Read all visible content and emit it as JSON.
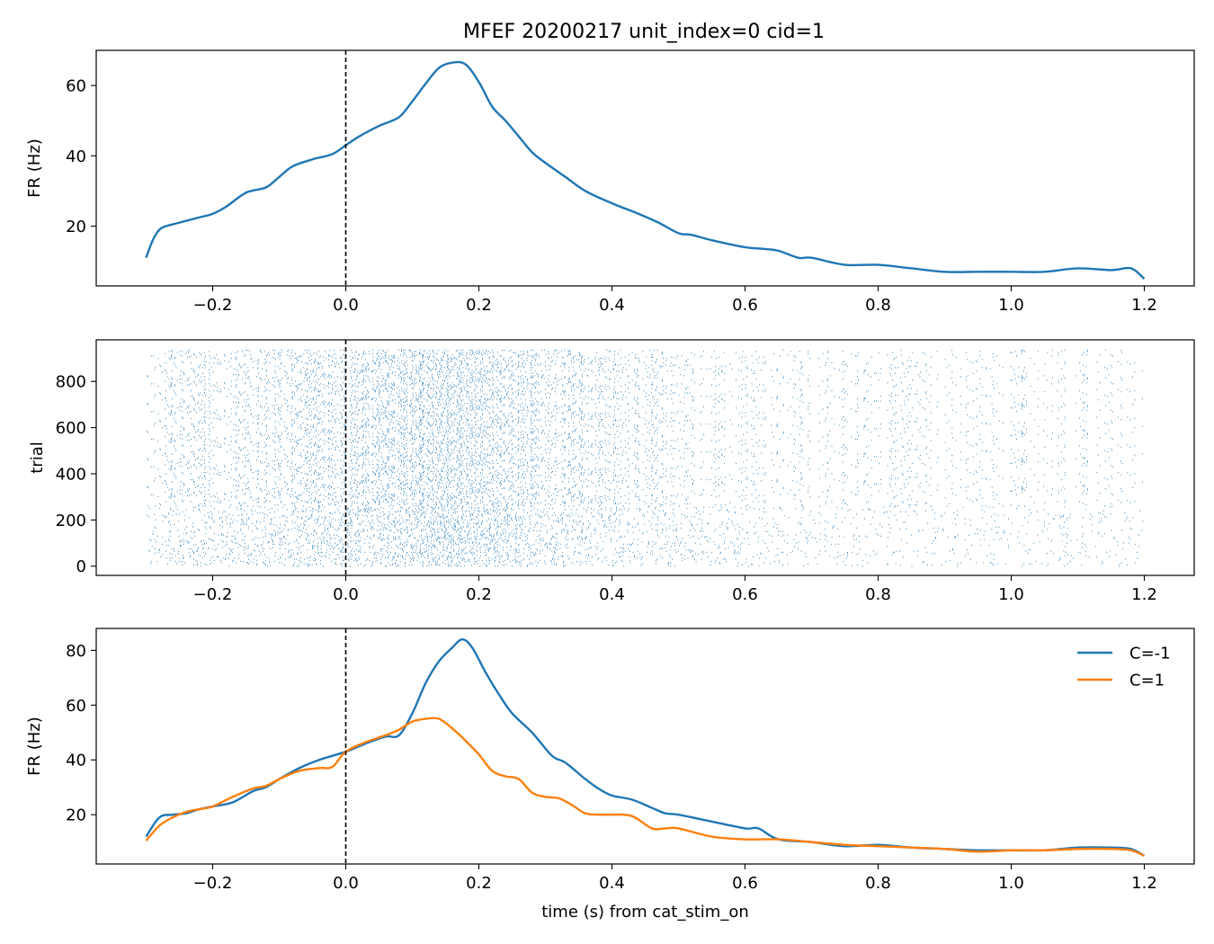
{
  "figure": {
    "title": "MFEF 20200217  unit_index=0  cid=1"
  },
  "colors": {
    "blue": "#1f77b4",
    "orange": "#ff7f0e",
    "axis": "#000000"
  },
  "chart_data": [
    {
      "type": "line",
      "panel": "psth",
      "xlabel": "",
      "ylabel": "FR (Hz)",
      "xlim": [
        -0.375,
        1.275
      ],
      "ylim": [
        3,
        70
      ],
      "xticks": [
        -0.2,
        0.0,
        0.2,
        0.4,
        0.6,
        0.8,
        1.0,
        1.2
      ],
      "xtick_labels": [
        "−0.2",
        "0.0",
        "0.2",
        "0.4",
        "0.6",
        "0.8",
        "1.0",
        "1.2"
      ],
      "yticks": [
        20,
        40,
        60
      ],
      "ytick_labels": [
        "20",
        "40",
        "60"
      ],
      "vline": 0.0,
      "series": [
        {
          "color": "#1f77b4",
          "x": [
            -0.3,
            -0.29,
            -0.28,
            -0.27,
            -0.25,
            -0.22,
            -0.2,
            -0.18,
            -0.15,
            -0.12,
            -0.1,
            -0.08,
            -0.05,
            -0.02,
            0.0,
            0.02,
            0.05,
            0.08,
            0.1,
            0.12,
            0.14,
            0.16,
            0.18,
            0.2,
            0.22,
            0.24,
            0.26,
            0.28,
            0.3,
            0.33,
            0.36,
            0.4,
            0.44,
            0.47,
            0.5,
            0.52,
            0.55,
            0.6,
            0.63,
            0.65,
            0.68,
            0.7,
            0.75,
            0.8,
            0.85,
            0.9,
            0.95,
            1.0,
            1.05,
            1.1,
            1.15,
            1.18,
            1.2
          ],
          "y": [
            11,
            16,
            19,
            20,
            21,
            22.5,
            23.5,
            25.5,
            29.5,
            31,
            34,
            37,
            39,
            40.5,
            43,
            45.5,
            48.5,
            51,
            55.5,
            60.5,
            65,
            66.5,
            66,
            61,
            54,
            50,
            45.5,
            41,
            38,
            34,
            30,
            26.5,
            23.5,
            21,
            18,
            17.5,
            16,
            14,
            13.5,
            13,
            11,
            11,
            9,
            9,
            8,
            7,
            7,
            7,
            7,
            8,
            7.5,
            8,
            5
          ]
        }
      ]
    },
    {
      "type": "scatter",
      "panel": "raster",
      "xlabel": "",
      "ylabel": "trial",
      "xlim": [
        -0.375,
        1.275
      ],
      "ylim": [
        -40,
        980
      ],
      "xticks": [
        -0.2,
        0.0,
        0.2,
        0.4,
        0.6,
        0.8,
        1.0,
        1.2
      ],
      "xtick_labels": [
        "−0.2",
        "0.0",
        "0.2",
        "0.4",
        "0.6",
        "0.8",
        "1.0",
        "1.2"
      ],
      "yticks": [
        0,
        200,
        400,
        600,
        800
      ],
      "ytick_labels": [
        "0",
        "200",
        "400",
        "600",
        "800"
      ],
      "vline": 0.0,
      "trial_count": 940,
      "time_range": [
        -0.3,
        1.2
      ],
      "color": "#1f77b4",
      "rate_profile_from_series": "psth"
    },
    {
      "type": "line",
      "panel": "psth_by_condition",
      "xlabel": "time (s) from cat_stim_on",
      "ylabel": "FR (Hz)",
      "xlim": [
        -0.375,
        1.275
      ],
      "ylim": [
        2,
        88
      ],
      "xticks": [
        -0.2,
        0.0,
        0.2,
        0.4,
        0.6,
        0.8,
        1.0,
        1.2
      ],
      "xtick_labels": [
        "−0.2",
        "0.0",
        "0.2",
        "0.4",
        "0.6",
        "0.8",
        "1.0",
        "1.2"
      ],
      "yticks": [
        20,
        40,
        60,
        80
      ],
      "ytick_labels": [
        "20",
        "40",
        "60",
        "80"
      ],
      "vline": 0.0,
      "legend": "top-right",
      "series": [
        {
          "name": "C=-1",
          "color": "#1f77b4",
          "x": [
            -0.3,
            -0.28,
            -0.26,
            -0.24,
            -0.22,
            -0.2,
            -0.17,
            -0.14,
            -0.12,
            -0.1,
            -0.07,
            -0.04,
            0.0,
            0.03,
            0.06,
            0.08,
            0.1,
            0.12,
            0.14,
            0.16,
            0.175,
            0.19,
            0.21,
            0.23,
            0.25,
            0.28,
            0.31,
            0.33,
            0.36,
            0.38,
            0.4,
            0.43,
            0.46,
            0.48,
            0.5,
            0.55,
            0.6,
            0.62,
            0.65,
            0.7,
            0.75,
            0.8,
            0.85,
            0.9,
            0.95,
            1.0,
            1.05,
            1.1,
            1.15,
            1.18,
            1.2
          ],
          "y": [
            12,
            19,
            20,
            20.5,
            22,
            23,
            24.5,
            28.5,
            30,
            33,
            37,
            40,
            43,
            46,
            48.5,
            49,
            57,
            68,
            76,
            81,
            84,
            81,
            72,
            64,
            57,
            50,
            41.5,
            39,
            33,
            29.5,
            27,
            25.5,
            22.5,
            20.5,
            20,
            17.5,
            15,
            15,
            11,
            10,
            8.5,
            9,
            8,
            7.5,
            7,
            7,
            7,
            8,
            8,
            7.5,
            5
          ]
        },
        {
          "name": "C=1",
          "color": "#ff7f0e",
          "x": [
            -0.3,
            -0.28,
            -0.26,
            -0.24,
            -0.22,
            -0.2,
            -0.17,
            -0.14,
            -0.12,
            -0.1,
            -0.07,
            -0.04,
            -0.02,
            0.0,
            0.03,
            0.06,
            0.08,
            0.1,
            0.12,
            0.14,
            0.16,
            0.18,
            0.2,
            0.22,
            0.24,
            0.26,
            0.28,
            0.3,
            0.32,
            0.34,
            0.36,
            0.38,
            0.4,
            0.43,
            0.46,
            0.48,
            0.5,
            0.55,
            0.6,
            0.65,
            0.7,
            0.75,
            0.8,
            0.85,
            0.9,
            0.95,
            1.0,
            1.05,
            1.1,
            1.15,
            1.18,
            1.2
          ],
          "y": [
            10.5,
            16,
            19,
            21,
            22,
            23,
            26.5,
            29.5,
            30.5,
            33,
            36,
            37,
            37.5,
            43,
            46.5,
            49,
            51,
            54,
            55,
            55,
            51.5,
            47,
            42,
            36,
            34,
            33,
            28,
            26.5,
            26,
            23.5,
            20.5,
            20,
            20,
            19.5,
            15,
            15,
            15,
            12,
            11,
            11,
            10,
            9,
            8.5,
            8,
            7.5,
            6.5,
            7,
            7,
            7.5,
            7.5,
            7,
            5
          ]
        }
      ]
    }
  ]
}
